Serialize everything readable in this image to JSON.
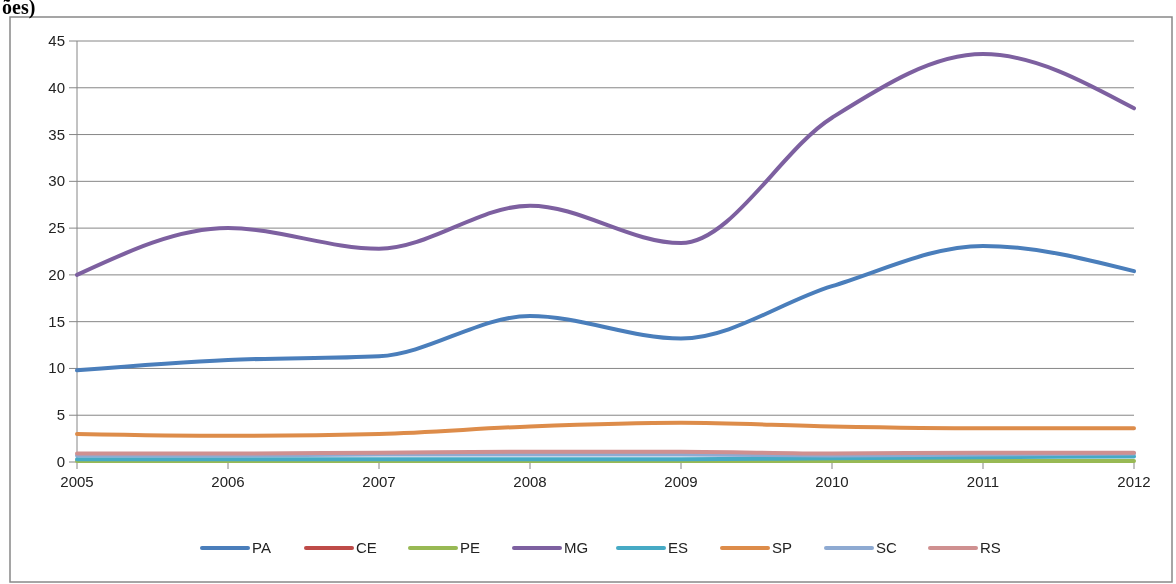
{
  "chart_data": {
    "type": "line",
    "title": "ões)",
    "x": [
      2005,
      2006,
      2007,
      2008,
      2009,
      2010,
      2011,
      2012
    ],
    "xlim": [
      2005,
      2012
    ],
    "xticks": [
      2005,
      2006,
      2007,
      2008,
      2009,
      2010,
      2011,
      2012
    ],
    "ylim": [
      0,
      45
    ],
    "yticks": [
      0,
      5,
      10,
      15,
      20,
      25,
      30,
      35,
      40,
      45
    ],
    "grid": "y",
    "legend": "bottom",
    "series": [
      {
        "name": "PA",
        "color": "#4a7ebb",
        "values": [
          9.8,
          10.9,
          11.3,
          15.6,
          13.2,
          18.8,
          23.1,
          20.4
        ]
      },
      {
        "name": "CE",
        "color": "#be4b48",
        "values": [
          null,
          null,
          null,
          null,
          null,
          null,
          null,
          null
        ]
      },
      {
        "name": "PE",
        "color": "#98b954",
        "values": [
          0.1,
          0.1,
          0.1,
          0.1,
          0.1,
          0.1,
          0.1,
          0.1
        ]
      },
      {
        "name": "MG",
        "color": "#7d60a0",
        "values": [
          20,
          25,
          22.8,
          27.4,
          23.4,
          36.8,
          43.6,
          37.8
        ]
      },
      {
        "name": "ES",
        "color": "#46aac5",
        "values": [
          0.3,
          0.3,
          0.3,
          0.3,
          0.3,
          0.4,
          0.5,
          0.6
        ]
      },
      {
        "name": "SP",
        "color": "#dd8c4a",
        "values": [
          3.0,
          2.8,
          3.0,
          3.8,
          4.2,
          3.8,
          3.6,
          3.6
        ]
      },
      {
        "name": "SC",
        "color": "#8eaad2",
        "values": [
          0.7,
          0.7,
          0.8,
          0.8,
          0.8,
          0.7,
          0.8,
          0.9
        ]
      },
      {
        "name": "RS",
        "color": "#cf9090",
        "values": [
          0.9,
          0.9,
          1.0,
          1.1,
          1.1,
          0.9,
          1.0,
          1.0
        ]
      }
    ]
  }
}
